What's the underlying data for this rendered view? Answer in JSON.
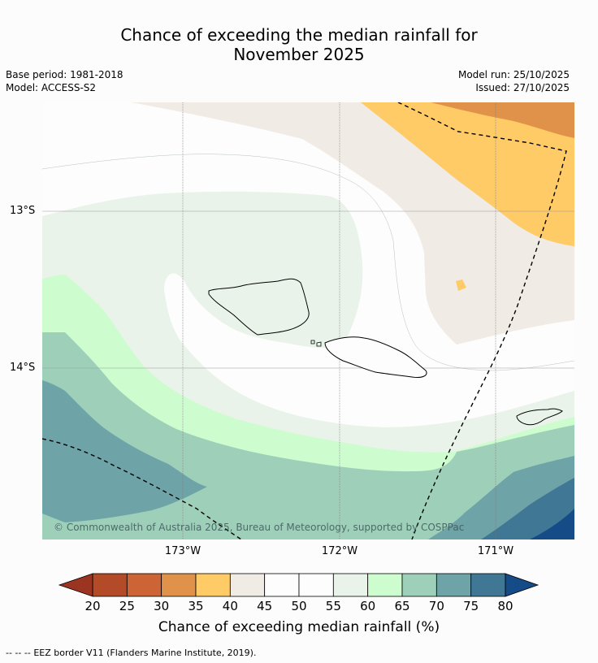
{
  "title": {
    "line1": "Chance of exceeding the median rainfall for",
    "line2": "November 2025"
  },
  "meta": {
    "base_period": "Base period: 1981-2018",
    "model": "Model: ACCESS-S2",
    "model_run": "Model run: 25/10/2025",
    "issued": "Issued: 27/10/2025"
  },
  "map": {
    "latitude_labels": [
      "13°S",
      "14°S"
    ],
    "longitude_labels": [
      "173°W",
      "172°W",
      "171°W"
    ],
    "copyright": "© Commonwealth of Australia 2025, Bureau of Meteorology, supported by COSPPac",
    "colors": {
      "c20": "#9b3522",
      "c25": "#b34a28",
      "c30": "#cc6435",
      "c35": "#e0924a",
      "c40": "#fecb66",
      "c45": "#f1ebe6",
      "c50": "#fcfdfc",
      "c55": "#fcfdfc",
      "c60": "#e9f3e9",
      "c65": "#cdfcce",
      "c70": "#9ed0b9",
      "c75": "#6ea3a8",
      "c80": "#407795",
      "c85": "#154b86"
    }
  },
  "colorbar": {
    "ticks": [
      "20",
      "25",
      "30",
      "35",
      "40",
      "45",
      "50",
      "55",
      "60",
      "65",
      "70",
      "75",
      "80"
    ],
    "label": "Chance of exceeding median rainfall (%)"
  },
  "legend": {
    "eez": "EEZ border V11 (Flanders Marine Institute, 2019).",
    "eez_symbol": "--  --  --"
  }
}
